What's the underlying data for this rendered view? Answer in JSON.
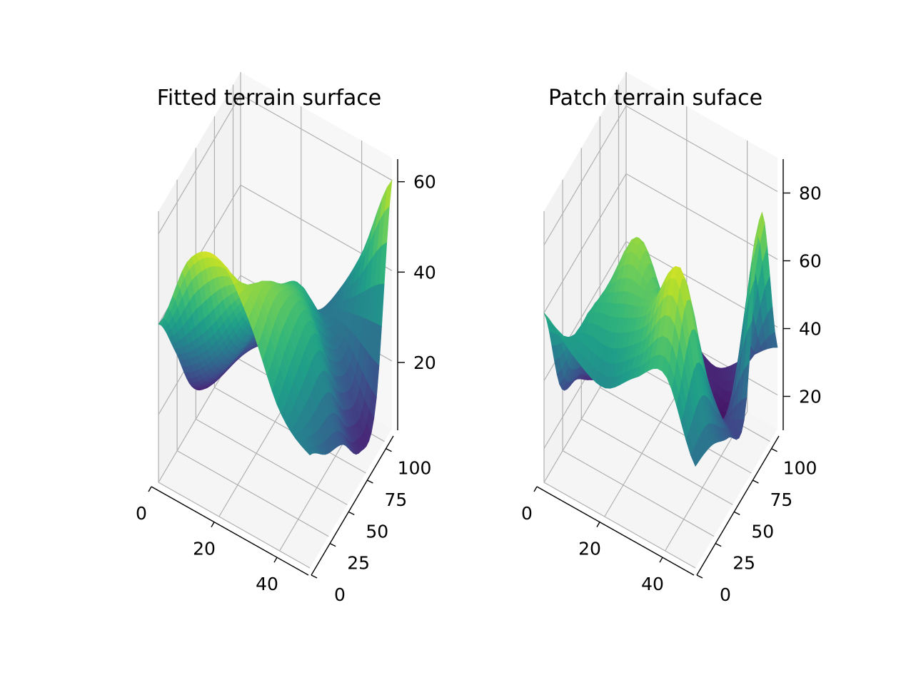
{
  "chart_data": [
    {
      "type": "surface",
      "title": "Fitted terrain surface",
      "xlabel": "",
      "ylabel": "",
      "zlabel": "",
      "colormap": "viridis",
      "grid": true,
      "xlim": [
        0,
        50
      ],
      "ylim": [
        0,
        110
      ],
      "zlim": [
        5,
        65
      ],
      "x_ticks": [
        "0",
        "20",
        "40"
      ],
      "y_ticks": [
        "0",
        "25",
        "50",
        "75",
        "100"
      ],
      "z_ticks": [
        "20",
        "40",
        "60"
      ],
      "x": [
        0,
        10,
        20,
        30,
        40,
        50
      ],
      "y": [
        0,
        22,
        44,
        66,
        88,
        110
      ],
      "z": [
        [
          40,
          58,
          62,
          52,
          36,
          30
        ],
        [
          28,
          35,
          46,
          54,
          40,
          24
        ],
        [
          14,
          22,
          34,
          48,
          42,
          20
        ],
        [
          8,
          18,
          30,
          42,
          30,
          12
        ],
        [
          10,
          14,
          22,
          30,
          26,
          16
        ],
        [
          18,
          10,
          16,
          26,
          40,
          60
        ]
      ]
    },
    {
      "type": "surface",
      "title": "Patch terrain suface",
      "xlabel": "",
      "ylabel": "",
      "zlabel": "",
      "colormap": "viridis",
      "grid": true,
      "xlim": [
        0,
        50
      ],
      "ylim": [
        0,
        110
      ],
      "zlim": [
        10,
        90
      ],
      "x_ticks": [
        "0",
        "20",
        "40"
      ],
      "y_ticks": [
        "0",
        "25",
        "50",
        "75",
        "100"
      ],
      "z_ticks": [
        "20",
        "40",
        "60",
        "80"
      ],
      "x": [
        0,
        10,
        20,
        30,
        40,
        50
      ],
      "y": [
        0,
        22,
        44,
        66,
        88,
        110
      ],
      "z": [
        [
          60,
          52,
          48,
          56,
          62,
          40
        ],
        [
          30,
          58,
          66,
          70,
          84,
          38
        ],
        [
          24,
          48,
          76,
          60,
          52,
          32
        ],
        [
          16,
          22,
          40,
          28,
          24,
          30
        ],
        [
          14,
          18,
          26,
          20,
          18,
          82
        ],
        [
          20,
          16,
          22,
          18,
          26,
          34
        ]
      ]
    }
  ]
}
